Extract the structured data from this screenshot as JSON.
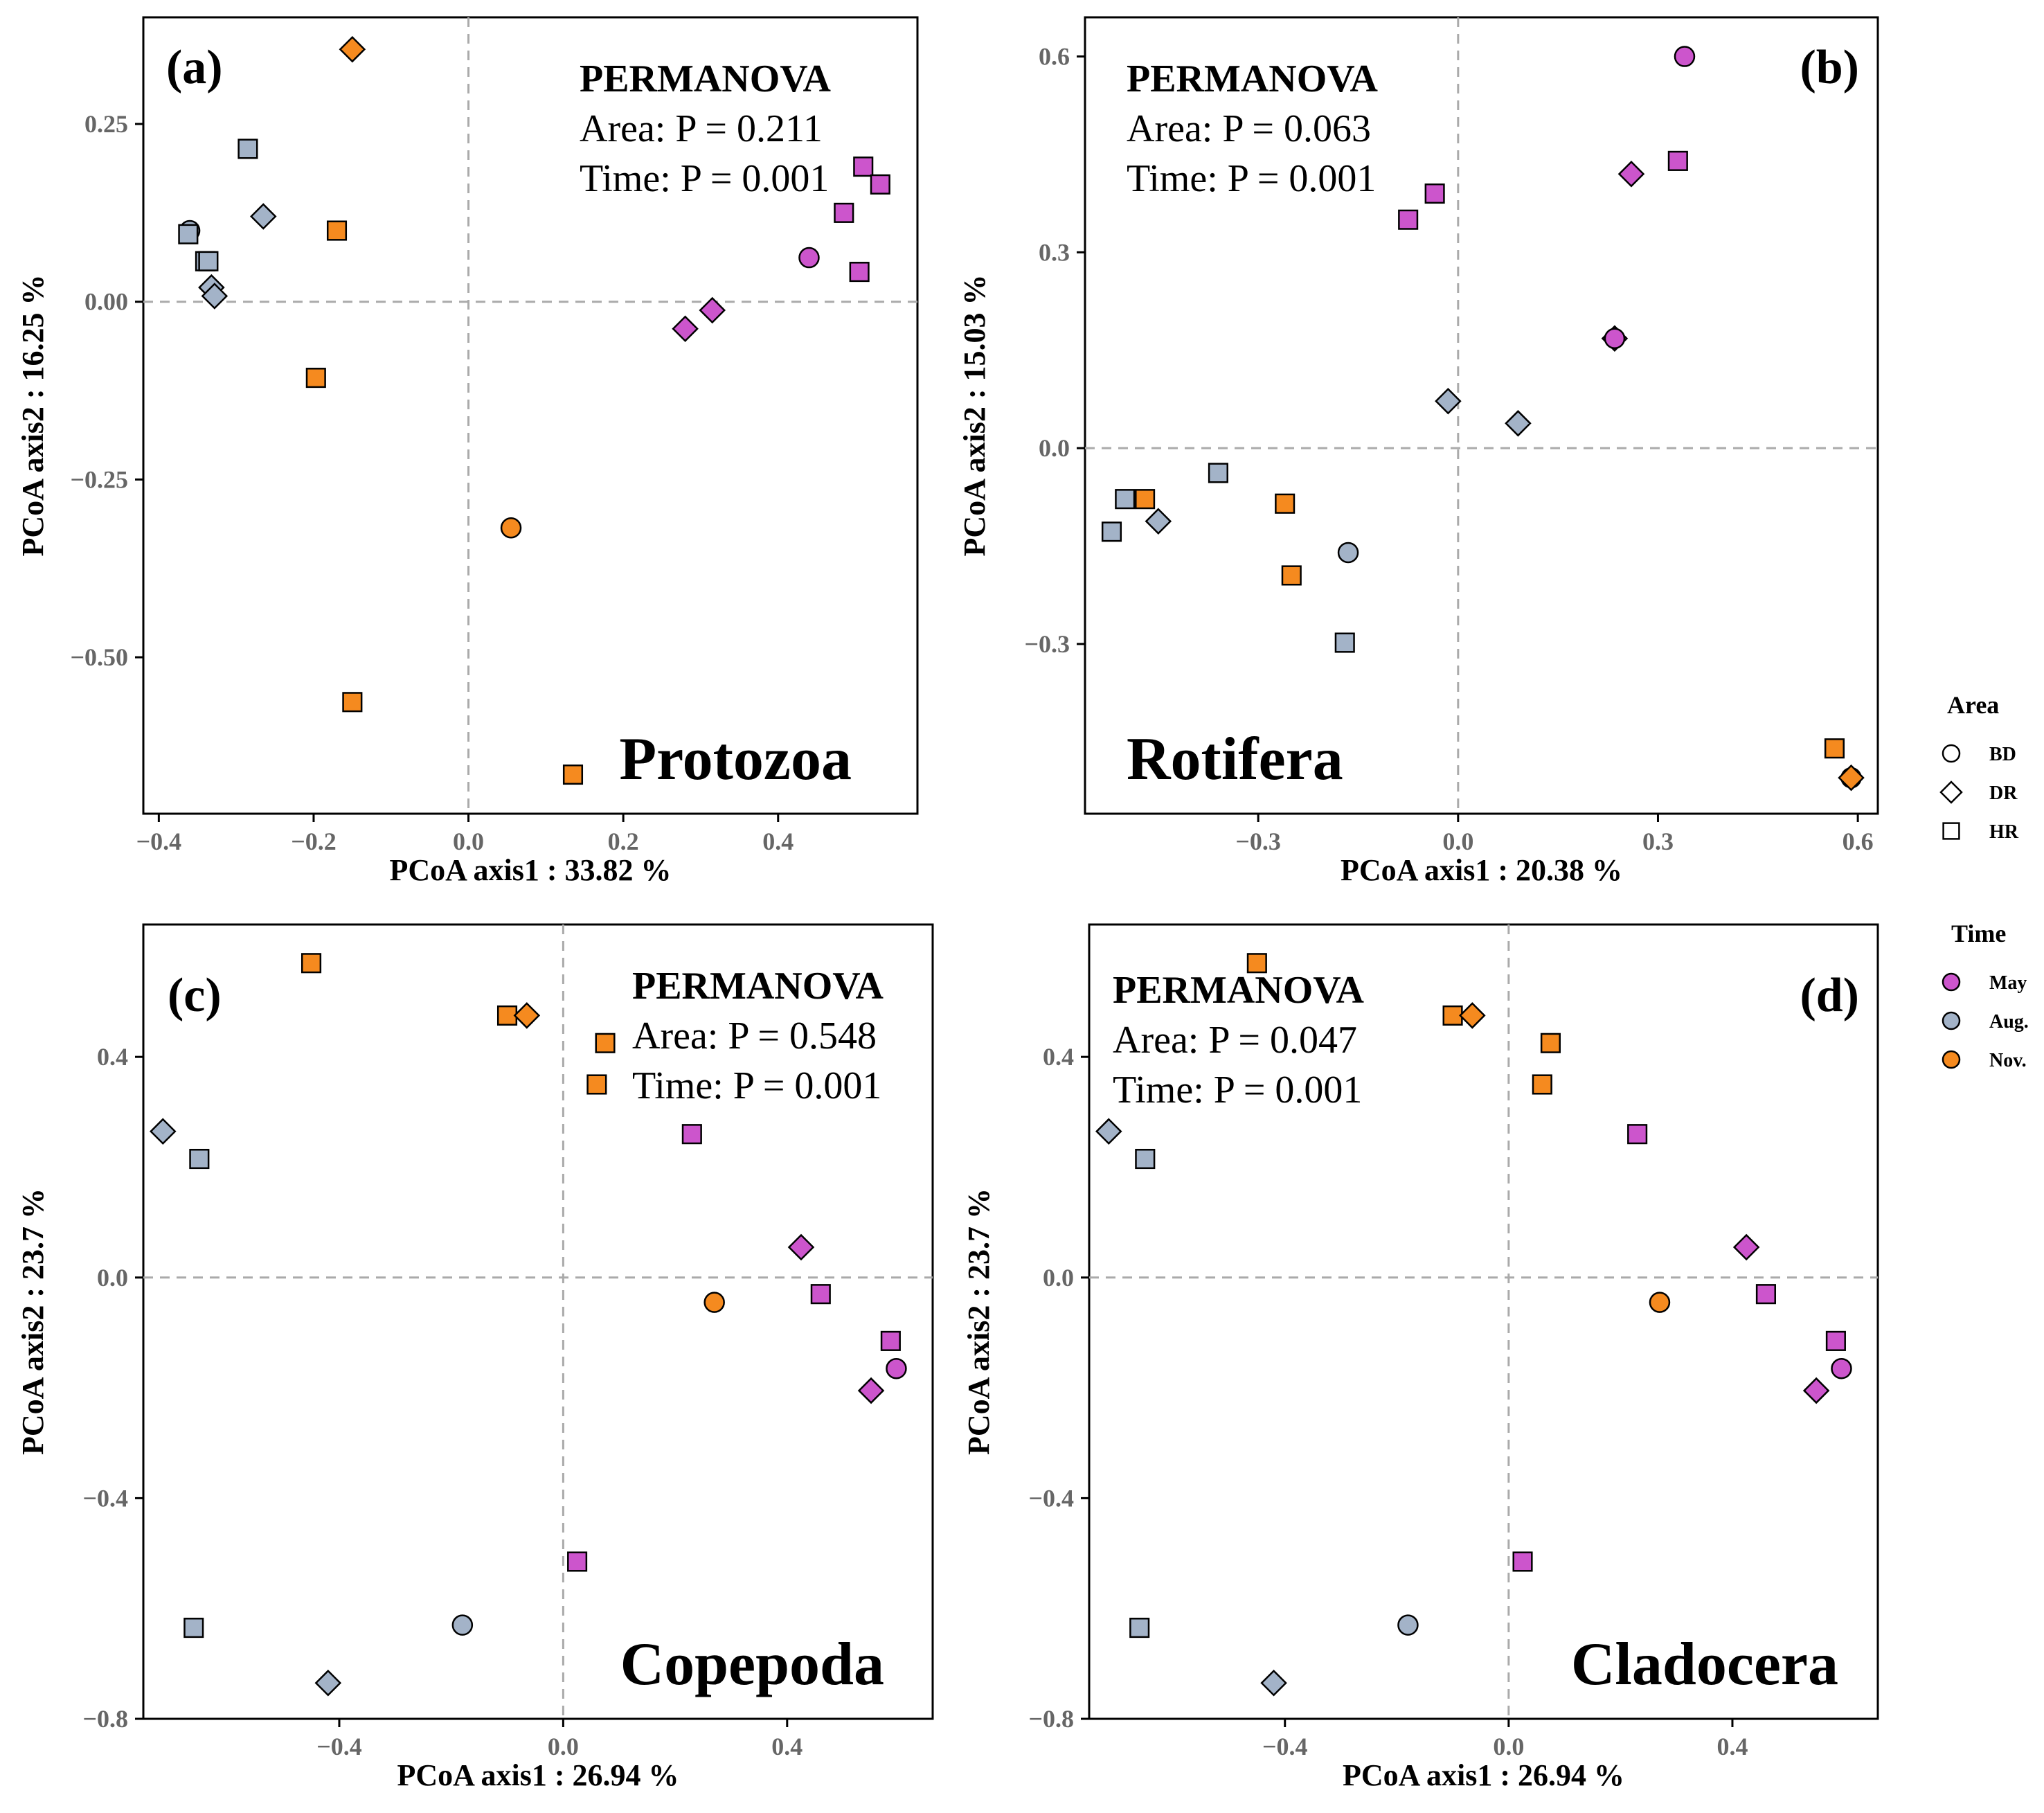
{
  "chart_data": [
    {
      "type": "scatter",
      "panel": "(a)",
      "taxon": "Protozoa",
      "permanova": {
        "title": "PERMANOVA",
        "area": "Area: P = 0.211",
        "time": "Time: P = 0.001"
      },
      "xlabel": "PCoA axis1 : 33.82 %",
      "ylabel": "PCoA axis2 : 16.25 %",
      "xlim": [
        -0.42,
        0.58
      ],
      "ylim": [
        -0.72,
        0.4
      ],
      "xticks": [
        -0.4,
        -0.2,
        0.0,
        0.2,
        0.4
      ],
      "xtick_labels": [
        "−0.4",
        "−0.2",
        "0.0",
        "0.2",
        "0.4"
      ],
      "yticks": [
        -0.5,
        -0.25,
        0.0,
        0.25
      ],
      "ytick_labels": [
        "−0.50",
        "−0.25",
        "0.00",
        "0.25"
      ],
      "points": [
        {
          "x": -0.15,
          "y": 0.355,
          "area": "DR",
          "time": "Nov."
        },
        {
          "x": -0.285,
          "y": 0.215,
          "area": "HR",
          "time": "Aug."
        },
        {
          "x": -0.36,
          "y": 0.1,
          "area": "BD",
          "time": "Aug."
        },
        {
          "x": -0.362,
          "y": 0.095,
          "area": "HR",
          "time": "Aug."
        },
        {
          "x": -0.265,
          "y": 0.12,
          "area": "DR",
          "time": "Aug."
        },
        {
          "x": -0.34,
          "y": 0.057,
          "area": "HR",
          "time": "Aug."
        },
        {
          "x": -0.336,
          "y": 0.057,
          "area": "HR",
          "time": "Aug."
        },
        {
          "x": -0.332,
          "y": 0.02,
          "area": "DR",
          "time": "Aug."
        },
        {
          "x": -0.328,
          "y": 0.008,
          "area": "DR",
          "time": "Aug."
        },
        {
          "x": -0.17,
          "y": 0.1,
          "area": "HR",
          "time": "Nov."
        },
        {
          "x": -0.197,
          "y": -0.107,
          "area": "HR",
          "time": "Nov."
        },
        {
          "x": -0.15,
          "y": -0.563,
          "area": "HR",
          "time": "Nov."
        },
        {
          "x": 0.135,
          "y": -0.665,
          "area": "HR",
          "time": "Nov."
        },
        {
          "x": 0.055,
          "y": -0.318,
          "area": "BD",
          "time": "Nov."
        },
        {
          "x": 0.51,
          "y": 0.19,
          "area": "HR",
          "time": "May"
        },
        {
          "x": 0.532,
          "y": 0.165,
          "area": "HR",
          "time": "May"
        },
        {
          "x": 0.485,
          "y": 0.125,
          "area": "HR",
          "time": "May"
        },
        {
          "x": 0.505,
          "y": 0.042,
          "area": "HR",
          "time": "May"
        },
        {
          "x": 0.44,
          "y": 0.062,
          "area": "BD",
          "time": "May"
        },
        {
          "x": 0.315,
          "y": -0.012,
          "area": "DR",
          "time": "May"
        },
        {
          "x": 0.28,
          "y": -0.038,
          "area": "DR",
          "time": "May"
        }
      ]
    },
    {
      "type": "scatter",
      "panel": "(b)",
      "taxon": "Rotifera",
      "permanova": {
        "title": "PERMANOVA",
        "area": "Area: P = 0.063",
        "time": "Time: P = 0.001"
      },
      "xlabel": "PCoA axis1 : 20.38 %",
      "ylabel": "PCoA axis2 : 15.03 %",
      "xlim": [
        -0.56,
        0.63
      ],
      "ylim": [
        -0.56,
        0.66
      ],
      "xticks": [
        -0.3,
        0.0,
        0.3,
        0.6
      ],
      "xtick_labels": [
        "−0.3",
        "0.0",
        "0.3",
        "0.6"
      ],
      "yticks": [
        -0.3,
        0.0,
        0.3,
        0.6
      ],
      "ytick_labels": [
        "−0.3",
        "0.0",
        "0.3",
        "0.6"
      ],
      "points": [
        {
          "x": 0.34,
          "y": 0.6,
          "area": "BD",
          "time": "May"
        },
        {
          "x": 0.33,
          "y": 0.44,
          "area": "HR",
          "time": "May"
        },
        {
          "x": 0.26,
          "y": 0.42,
          "area": "DR",
          "time": "May"
        },
        {
          "x": -0.035,
          "y": 0.39,
          "area": "HR",
          "time": "May"
        },
        {
          "x": -0.075,
          "y": 0.35,
          "area": "HR",
          "time": "May"
        },
        {
          "x": 0.235,
          "y": 0.168,
          "area": "DR",
          "time": "May"
        },
        {
          "x": 0.235,
          "y": 0.168,
          "area": "BD",
          "time": "May"
        },
        {
          "x": -0.015,
          "y": 0.072,
          "area": "DR",
          "time": "Aug."
        },
        {
          "x": 0.09,
          "y": 0.038,
          "area": "DR",
          "time": "Aug."
        },
        {
          "x": -0.36,
          "y": -0.038,
          "area": "HR",
          "time": "Aug."
        },
        {
          "x": -0.5,
          "y": -0.078,
          "area": "HR",
          "time": "Aug."
        },
        {
          "x": -0.52,
          "y": -0.128,
          "area": "HR",
          "time": "Aug."
        },
        {
          "x": -0.45,
          "y": -0.112,
          "area": "DR",
          "time": "Aug."
        },
        {
          "x": -0.47,
          "y": -0.078,
          "area": "HR",
          "time": "Nov."
        },
        {
          "x": -0.26,
          "y": -0.085,
          "area": "HR",
          "time": "Nov."
        },
        {
          "x": -0.25,
          "y": -0.195,
          "area": "HR",
          "time": "Nov."
        },
        {
          "x": -0.165,
          "y": -0.16,
          "area": "BD",
          "time": "Aug."
        },
        {
          "x": -0.17,
          "y": -0.298,
          "area": "HR",
          "time": "Aug."
        },
        {
          "x": 0.565,
          "y": -0.46,
          "area": "HR",
          "time": "Nov."
        },
        {
          "x": 0.59,
          "y": -0.505,
          "area": "BD",
          "time": "Nov."
        },
        {
          "x": 0.59,
          "y": -0.505,
          "area": "DR",
          "time": "Nov."
        }
      ]
    },
    {
      "type": "scatter",
      "panel": "(c)",
      "taxon": "Copepoda",
      "permanova": {
        "title": "PERMANOVA",
        "area": "Area: P = 0.548",
        "time": "Time: P = 0.001"
      },
      "xlabel": "PCoA axis1 : 26.94 %",
      "ylabel": "PCoA axis2 : 23.7 %",
      "xlim": [
        -0.75,
        0.66
      ],
      "ylim": [
        -0.8,
        0.64
      ],
      "xticks": [
        -0.4,
        0.0,
        0.4
      ],
      "xtick_labels": [
        "−0.4",
        "0.0",
        "0.4"
      ],
      "yticks": [
        -0.8,
        -0.4,
        0.0,
        0.4
      ],
      "ytick_labels": [
        "−0.8",
        "−0.4",
        "0.0",
        "0.4"
      ],
      "points": [
        {
          "x": -0.45,
          "y": 0.57,
          "area": "HR",
          "time": "Nov."
        },
        {
          "x": -0.1,
          "y": 0.475,
          "area": "HR",
          "time": "Nov."
        },
        {
          "x": -0.065,
          "y": 0.475,
          "area": "DR",
          "time": "Nov."
        },
        {
          "x": 0.075,
          "y": 0.425,
          "area": "HR",
          "time": "Nov."
        },
        {
          "x": 0.06,
          "y": 0.35,
          "area": "HR",
          "time": "Nov."
        },
        {
          "x": -0.715,
          "y": 0.265,
          "area": "DR",
          "time": "Aug."
        },
        {
          "x": -0.65,
          "y": 0.215,
          "area": "HR",
          "time": "Aug."
        },
        {
          "x": 0.23,
          "y": 0.26,
          "area": "HR",
          "time": "May"
        },
        {
          "x": 0.425,
          "y": 0.055,
          "area": "DR",
          "time": "May"
        },
        {
          "x": 0.46,
          "y": -0.03,
          "area": "HR",
          "time": "May"
        },
        {
          "x": 0.27,
          "y": -0.045,
          "area": "BD",
          "time": "Nov."
        },
        {
          "x": 0.585,
          "y": -0.115,
          "area": "HR",
          "time": "May"
        },
        {
          "x": 0.595,
          "y": -0.165,
          "area": "BD",
          "time": "May"
        },
        {
          "x": 0.55,
          "y": -0.205,
          "area": "DR",
          "time": "May"
        },
        {
          "x": 0.025,
          "y": -0.515,
          "area": "HR",
          "time": "May"
        },
        {
          "x": -0.66,
          "y": -0.635,
          "area": "HR",
          "time": "Aug."
        },
        {
          "x": -0.18,
          "y": -0.63,
          "area": "BD",
          "time": "Aug."
        },
        {
          "x": -0.42,
          "y": -0.735,
          "area": "DR",
          "time": "Aug."
        }
      ]
    },
    {
      "type": "scatter",
      "panel": "(d)",
      "taxon": "Cladocera",
      "permanova": {
        "title": "PERMANOVA",
        "area": "Area: P = 0.047",
        "time": "Time: P = 0.001"
      },
      "xlabel": "PCoA axis1 : 26.94 %",
      "ylabel": "PCoA axis2 : 23.7 %",
      "xlim": [
        -0.75,
        0.66
      ],
      "ylim": [
        -0.8,
        0.64
      ],
      "xticks": [
        -0.4,
        0.0,
        0.4
      ],
      "xtick_labels": [
        "−0.4",
        "0.0",
        "0.4"
      ],
      "yticks": [
        -0.8,
        -0.4,
        0.0,
        0.4
      ],
      "ytick_labels": [
        "−0.8",
        "−0.4",
        "0.0",
        "0.4"
      ],
      "points": [
        {
          "x": -0.45,
          "y": 0.57,
          "area": "HR",
          "time": "Nov."
        },
        {
          "x": -0.1,
          "y": 0.475,
          "area": "HR",
          "time": "Nov."
        },
        {
          "x": -0.065,
          "y": 0.475,
          "area": "DR",
          "time": "Nov."
        },
        {
          "x": 0.075,
          "y": 0.425,
          "area": "HR",
          "time": "Nov."
        },
        {
          "x": 0.06,
          "y": 0.35,
          "area": "HR",
          "time": "Nov."
        },
        {
          "x": -0.715,
          "y": 0.265,
          "area": "DR",
          "time": "Aug."
        },
        {
          "x": -0.65,
          "y": 0.215,
          "area": "HR",
          "time": "Aug."
        },
        {
          "x": 0.23,
          "y": 0.26,
          "area": "HR",
          "time": "May"
        },
        {
          "x": 0.425,
          "y": 0.055,
          "area": "DR",
          "time": "May"
        },
        {
          "x": 0.46,
          "y": -0.03,
          "area": "HR",
          "time": "May"
        },
        {
          "x": 0.27,
          "y": -0.045,
          "area": "BD",
          "time": "Nov."
        },
        {
          "x": 0.585,
          "y": -0.115,
          "area": "HR",
          "time": "May"
        },
        {
          "x": 0.595,
          "y": -0.165,
          "area": "BD",
          "time": "May"
        },
        {
          "x": 0.55,
          "y": -0.205,
          "area": "DR",
          "time": "May"
        },
        {
          "x": 0.025,
          "y": -0.515,
          "area": "HR",
          "time": "May"
        },
        {
          "x": -0.66,
          "y": -0.635,
          "area": "HR",
          "time": "Aug."
        },
        {
          "x": -0.18,
          "y": -0.63,
          "area": "BD",
          "time": "Aug."
        },
        {
          "x": -0.42,
          "y": -0.735,
          "area": "DR",
          "time": "Aug."
        }
      ]
    }
  ],
  "legend": {
    "area_title": "Area",
    "area_items": [
      {
        "label": "BD",
        "shape": "circle"
      },
      {
        "label": "DR",
        "shape": "diamond"
      },
      {
        "label": "HR",
        "shape": "square"
      }
    ],
    "time_title": "Time",
    "time_items": [
      {
        "label": "May",
        "color": "#cc55cc"
      },
      {
        "label": "Aug.",
        "color": "#a3b3c8"
      },
      {
        "label": "Nov.",
        "color": "#f58a1f"
      }
    ]
  }
}
